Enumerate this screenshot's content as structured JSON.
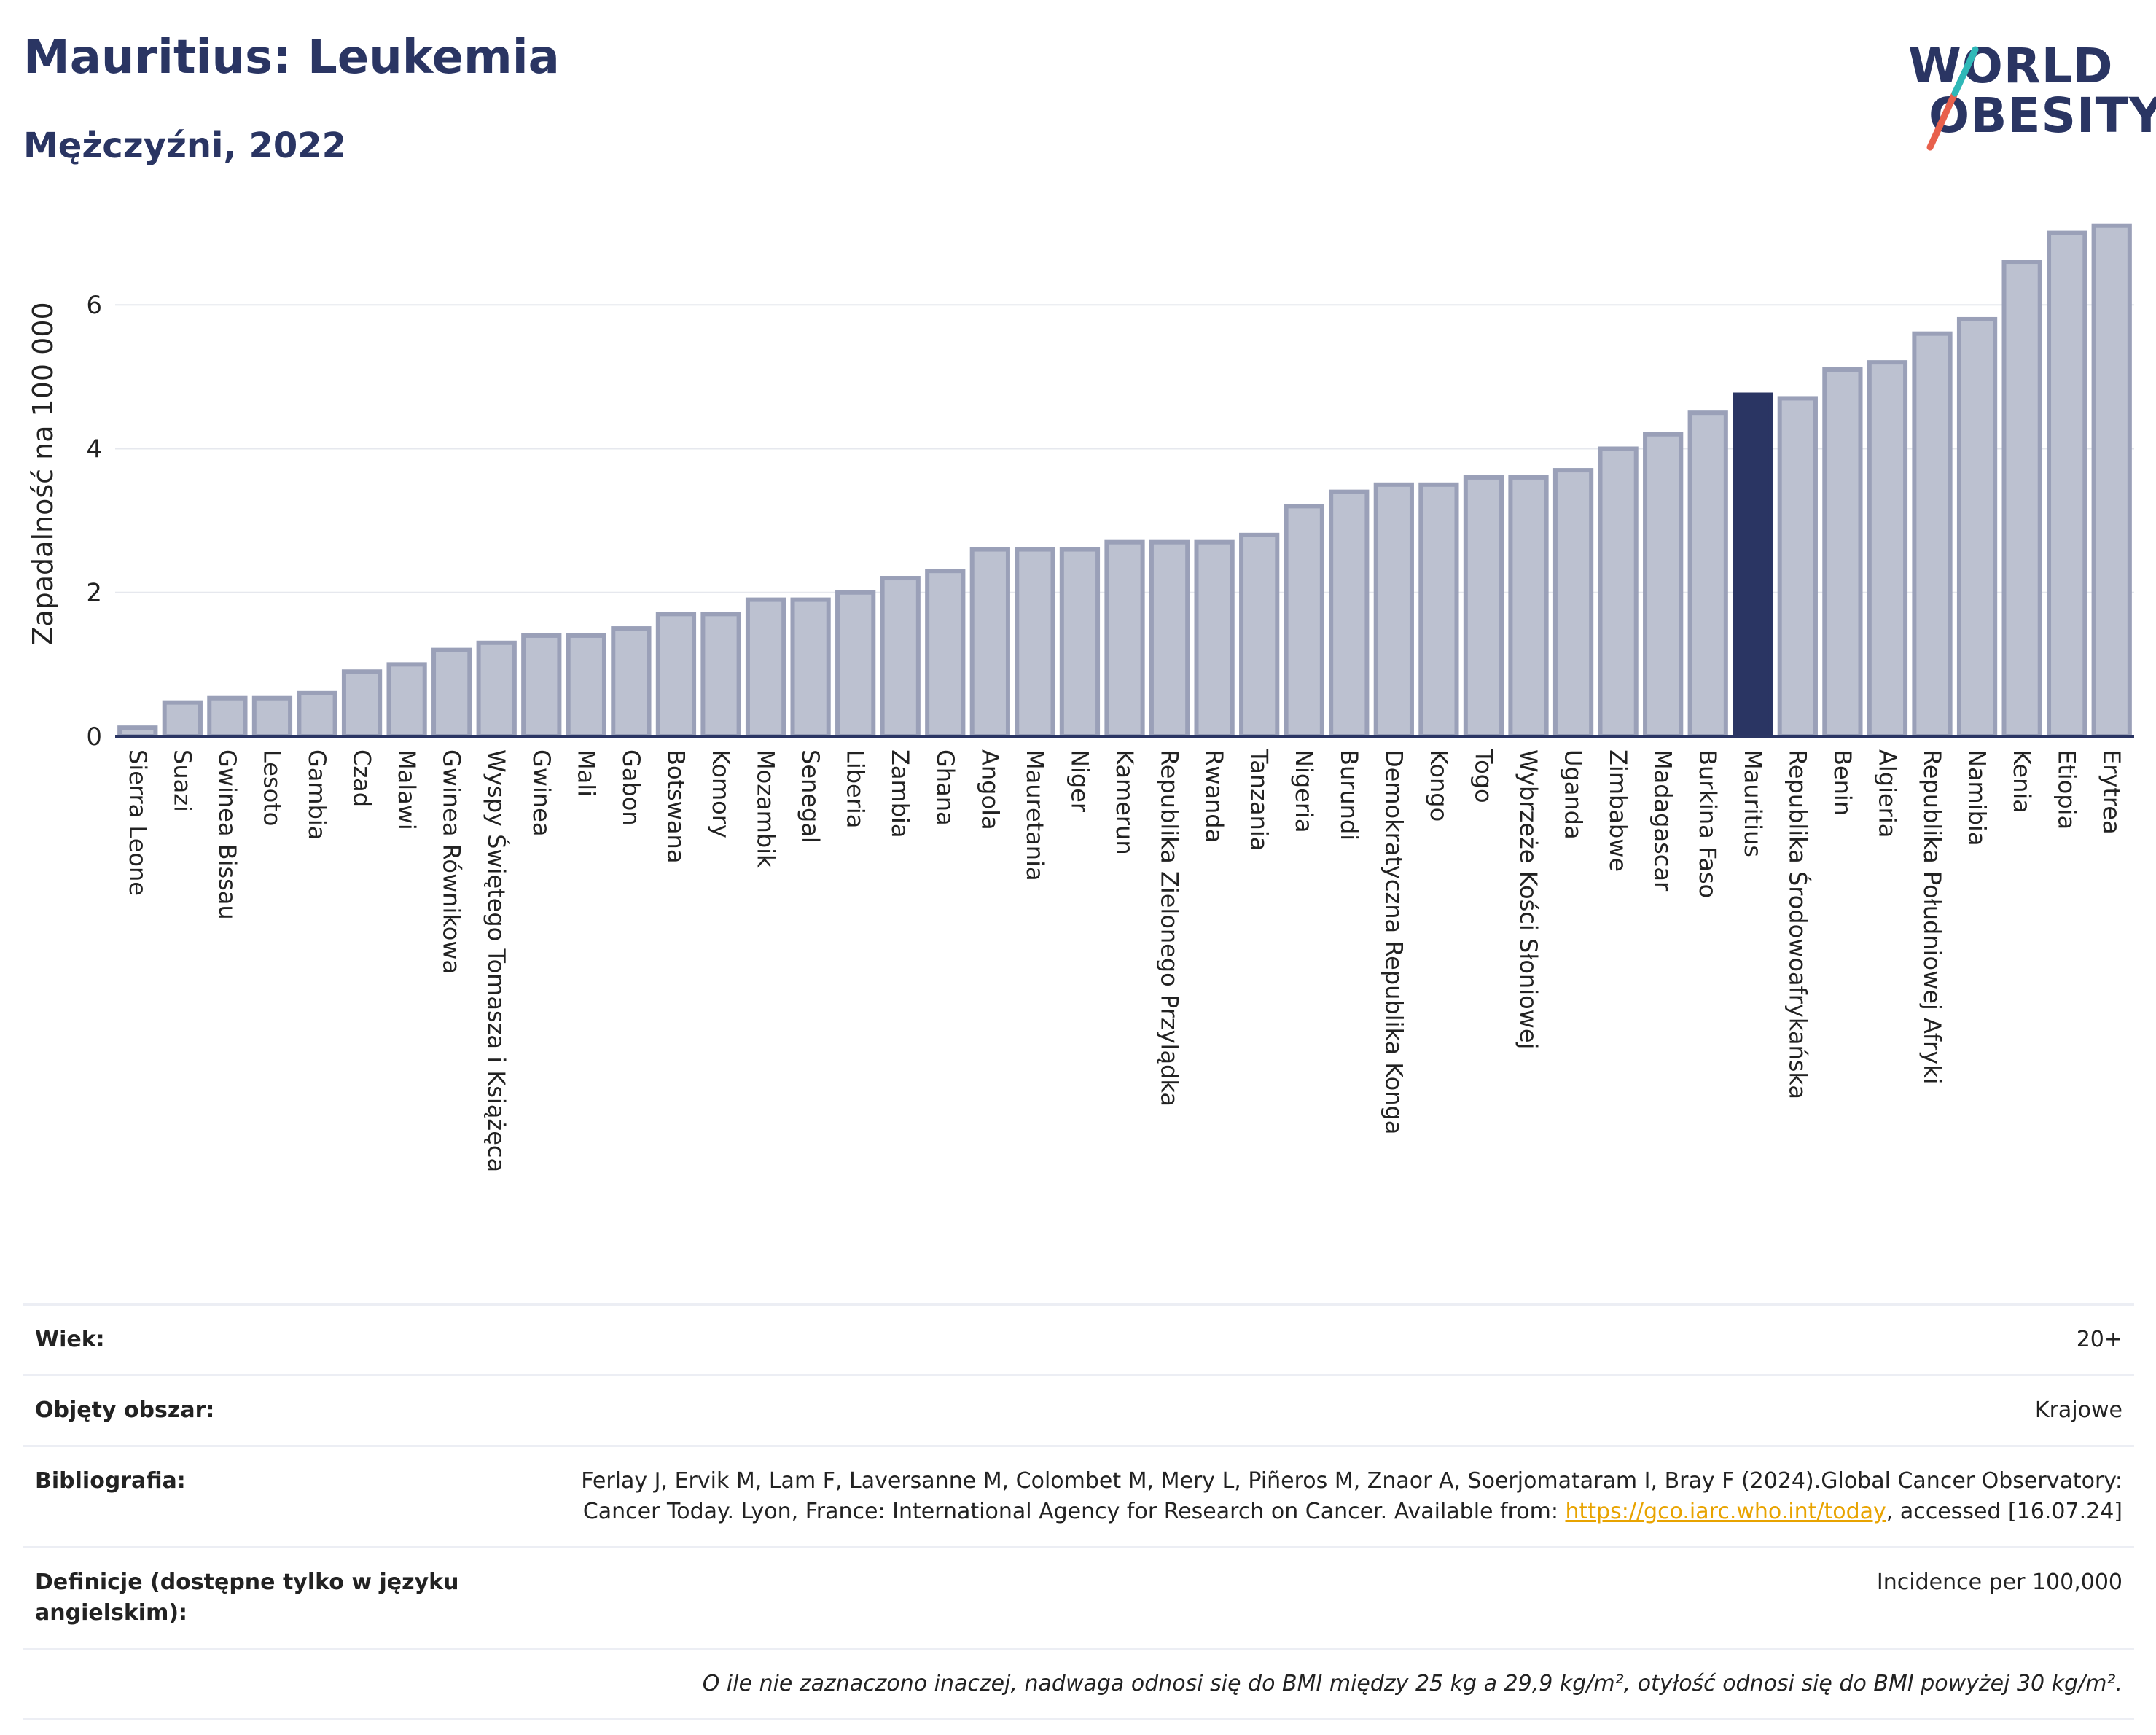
{
  "title": "Mauritius: Leukemia",
  "subtitle": "Mężczyźni, 2022",
  "logo": {
    "line1": "WORLD",
    "line2": "OBESITY",
    "accent_teal": "#2fb8b8",
    "accent_red": "#e8604c"
  },
  "colors": {
    "bar": "#bcc1d0",
    "bar_stroke": "#9aa0b8",
    "highlight": "#2a3563"
  },
  "chart_data": {
    "type": "bar",
    "ylabel": "Zapadalność na 100 000",
    "ylim": [
      0,
      7.3
    ],
    "yticks": [
      0,
      2,
      4,
      6
    ],
    "grid": true,
    "highlight": "Mauritius",
    "categories": [
      "Sierra Leone",
      "Suazi",
      "Gwinea Bissau",
      "Lesoto",
      "Gambia",
      "Czad",
      "Malawi",
      "Gwinea Równikowa",
      "Wyspy Świętego Tomasza i Książęca",
      "Gwinea",
      "Mali",
      "Gabon",
      "Botswana",
      "Komory",
      "Mozambik",
      "Senegal",
      "Liberia",
      "Zambia",
      "Ghana",
      "Angola",
      "Mauretania",
      "Niger",
      "Kamerun",
      "Republika Zielonego Przylądka",
      "Rwanda",
      "Tanzania",
      "Nigeria",
      "Burundi",
      "Demokratyczna Republika Konga",
      "Kongo",
      "Togo",
      "Wybrzeże Kości Słoniowej",
      "Uganda",
      "Zimbabwe",
      "Madagascar",
      "Burkina Faso",
      "Mauritius",
      "Republika Środowoafrykańska",
      "Benin",
      "Algieria",
      "Republika Południowej Afryki",
      "Namibia",
      "Kenia",
      "Etiopia",
      "Erytrea"
    ],
    "values": [
      0.12,
      0.47,
      0.53,
      0.53,
      0.6,
      0.9,
      1.0,
      1.2,
      1.3,
      1.4,
      1.4,
      1.5,
      1.7,
      1.7,
      1.9,
      1.9,
      2.0,
      2.2,
      2.3,
      2.6,
      2.6,
      2.6,
      2.7,
      2.7,
      2.7,
      2.8,
      3.2,
      3.4,
      3.5,
      3.5,
      3.6,
      3.6,
      3.7,
      4.0,
      4.2,
      4.5,
      4.75,
      4.7,
      5.1,
      5.2,
      5.6,
      5.8,
      6.6,
      7.0,
      7.1
    ]
  },
  "meta": {
    "age_label": "Wiek:",
    "age_value": "20+",
    "area_label": "Objęty obszar:",
    "area_value": "Krajowe",
    "bib_label": "Bibliografia:",
    "bib_text1": "Ferlay J, Ervik M, Lam F, Laversanne M, Colombet M, Mery L, Piñeros M, Znaor A, Soerjomataram I, Bray F (2024).Global Cancer Observatory: Cancer Today. Lyon, France: International Agency for Research on Cancer. Available from: ",
    "bib_link": "https://gco.iarc.who.int/today",
    "bib_text2": ", accessed [16.07.24]",
    "def_label": "Definicje (dostępne tylko w języku angielskim):",
    "def_value": "Incidence per 100,000",
    "note": "O ile nie zaznaczono inaczej, nadwaga odnosi się do BMI między 25 kg a 29,9 kg/m², otyłość odnosi się do BMI powyżej 30 kg/m²."
  }
}
